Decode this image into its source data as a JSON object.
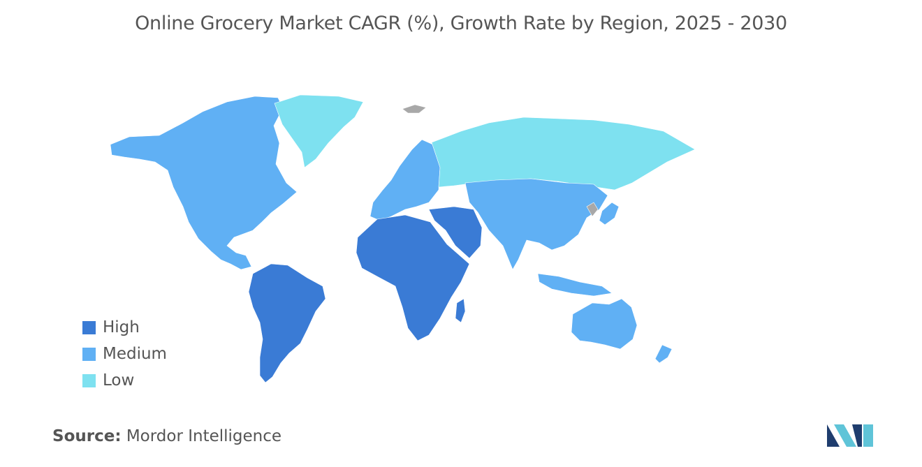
{
  "title": "Online Grocery Market CAGR (%), Growth Rate by Region, 2025 - 2030",
  "legend": [
    {
      "label": "High",
      "color": "#3a7bd5"
    },
    {
      "label": "Medium",
      "color": "#60b0f4"
    },
    {
      "label": "Low",
      "color": "#7ee1f0"
    }
  ],
  "regions": {
    "north_america": "Medium",
    "greenland": "Low",
    "south_america": "High",
    "europe": "Medium",
    "russia": "Low",
    "africa": "High",
    "middle_east": "High",
    "asia": "Medium",
    "australia": "Medium"
  },
  "no_data_color": "#a8a8a8",
  "source": {
    "key": "Source:",
    "value": "Mordor Intelligence"
  },
  "logo": {
    "icon": "mordor-intelligence-logo",
    "colors": [
      "#1f3d6e",
      "#5fc4d8"
    ]
  }
}
